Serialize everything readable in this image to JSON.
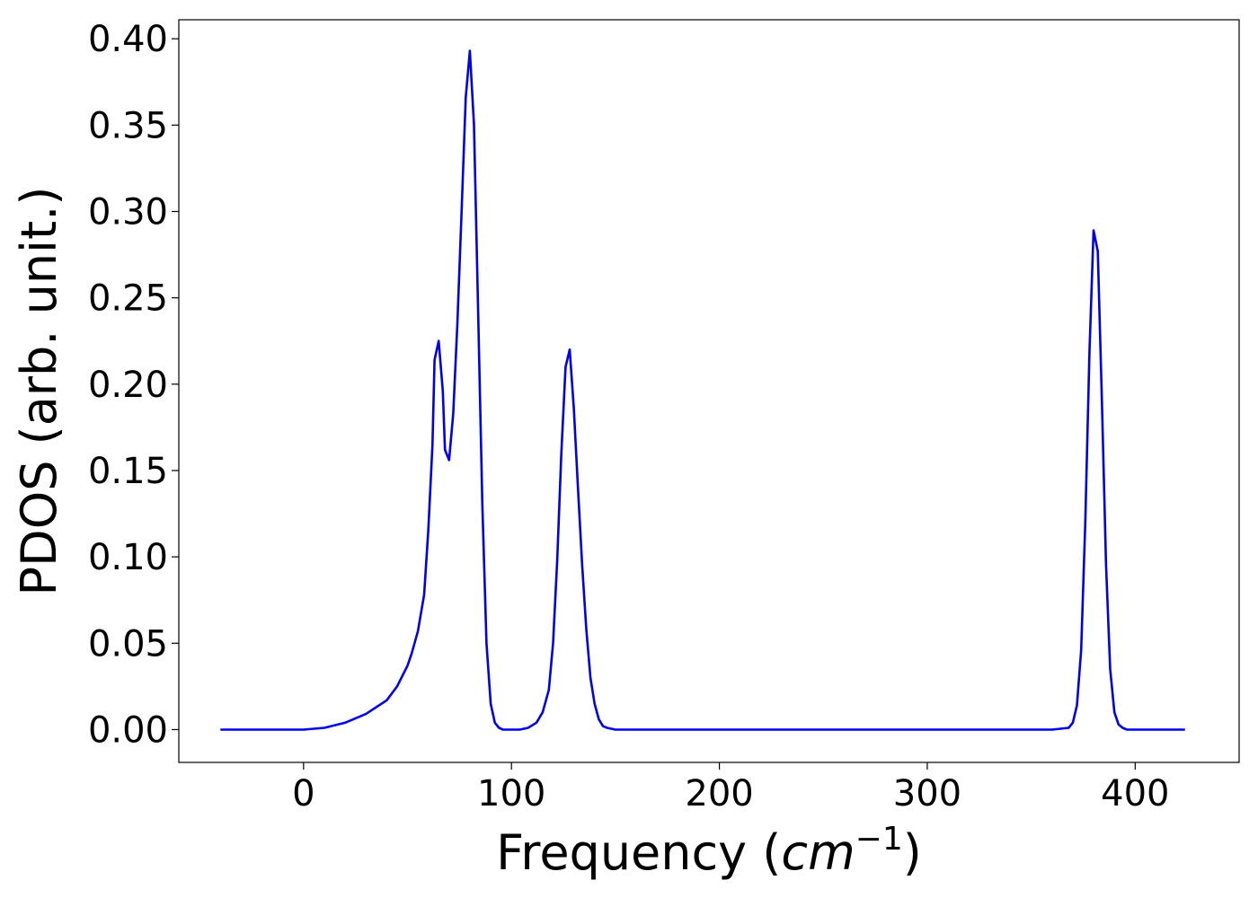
{
  "chart_data": {
    "type": "line",
    "title": "",
    "xlabel": {
      "text": "Frequency (",
      "math": "cm",
      "sup": "−1",
      "close": ")"
    },
    "ylabel": "PDOS (arb. unit.)",
    "xlim": [
      -60,
      450
    ],
    "ylim": [
      -0.019,
      0.411
    ],
    "xticks": [
      0,
      100,
      200,
      300,
      400
    ],
    "xtick_labels": [
      "0",
      "100",
      "200",
      "300",
      "400"
    ],
    "yticks": [
      0.0,
      0.05,
      0.1,
      0.15,
      0.2,
      0.25,
      0.3,
      0.35,
      0.4
    ],
    "ytick_labels": [
      "0.00",
      "0.05",
      "0.10",
      "0.15",
      "0.20",
      "0.25",
      "0.30",
      "0.35",
      "0.40"
    ],
    "grid": false,
    "legend": "none",
    "series": [
      {
        "color": "#0000ee",
        "x": [
          -40,
          0,
          10,
          20,
          30,
          40,
          45,
          50,
          52,
          55,
          58,
          60,
          62,
          63,
          65,
          67,
          68,
          70,
          72,
          74,
          76,
          78,
          80,
          82,
          84,
          86,
          88,
          90,
          92,
          94,
          96,
          98,
          100,
          104,
          108,
          112,
          115,
          118,
          120,
          122,
          124,
          126,
          128,
          130,
          132,
          134,
          136,
          138,
          140,
          142,
          144,
          146,
          150,
          160,
          200,
          300,
          360,
          368,
          370,
          372,
          374,
          376,
          378,
          380,
          382,
          384,
          386,
          388,
          390,
          392,
          394,
          396,
          398,
          400,
          410,
          424
        ],
        "y": [
          0.0,
          0.0,
          0.001,
          0.004,
          0.009,
          0.017,
          0.025,
          0.037,
          0.044,
          0.057,
          0.078,
          0.115,
          0.165,
          0.214,
          0.225,
          0.196,
          0.162,
          0.156,
          0.183,
          0.235,
          0.3,
          0.366,
          0.393,
          0.35,
          0.24,
          0.13,
          0.05,
          0.015,
          0.004,
          0.001,
          0.0,
          0.0,
          0.0,
          0.0,
          0.001,
          0.004,
          0.01,
          0.023,
          0.05,
          0.098,
          0.16,
          0.21,
          0.22,
          0.186,
          0.14,
          0.095,
          0.058,
          0.03,
          0.015,
          0.006,
          0.002,
          0.001,
          0.0,
          0.0,
          0.0,
          0.0,
          0.0,
          0.001,
          0.004,
          0.014,
          0.046,
          0.12,
          0.218,
          0.289,
          0.277,
          0.19,
          0.095,
          0.035,
          0.01,
          0.003,
          0.001,
          0.0,
          0.0,
          0.0,
          0.0,
          0.0
        ]
      }
    ]
  }
}
